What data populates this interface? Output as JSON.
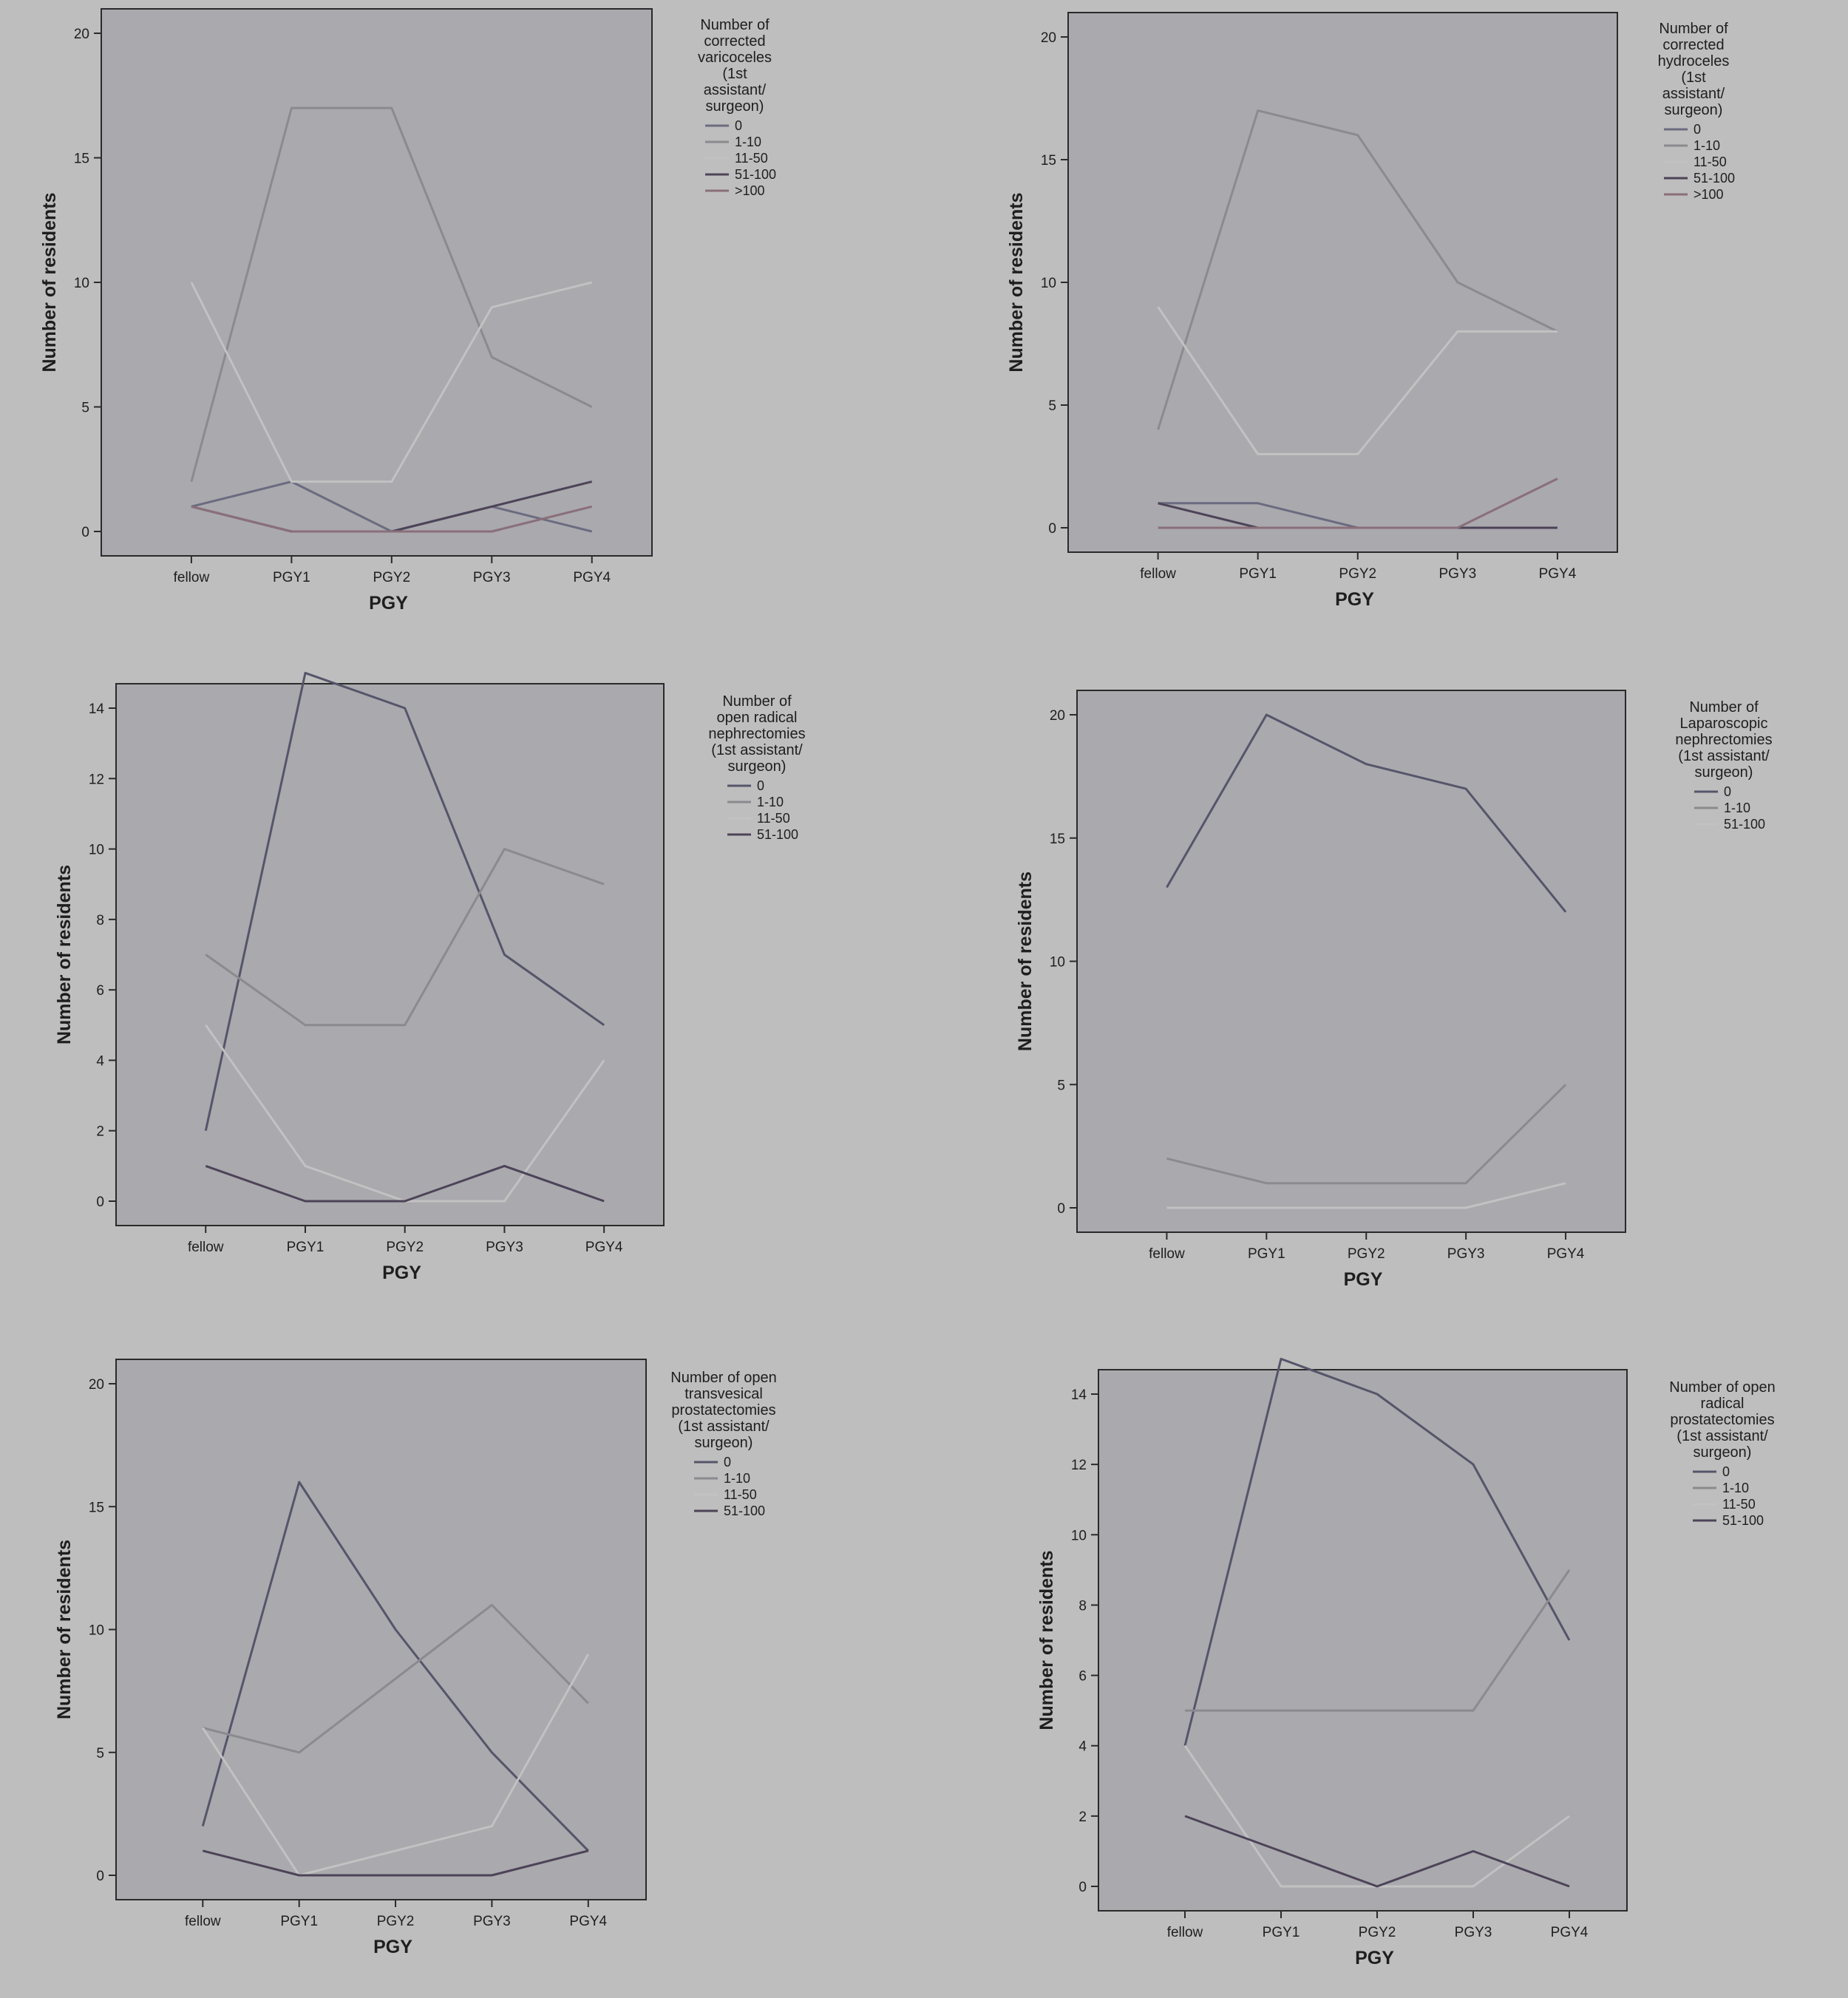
{
  "page": {
    "background": "#bebebe",
    "plot_background": "#a9a9ae"
  },
  "chart_data": [
    {
      "type": "line",
      "xlabel": "PGY",
      "ylabel": "Number of residents",
      "categories": [
        "fellow",
        "PGY1",
        "PGY2",
        "PGY3",
        "PGY4"
      ],
      "ylim": [
        0,
        20
      ],
      "yticks": [
        0,
        5,
        10,
        15,
        20
      ],
      "legend_title": [
        "Number of",
        "corrected",
        "varicoceles",
        "(1st",
        "assistant/",
        "surgeon)"
      ],
      "series": [
        {
          "name": "0",
          "color": "#6b6b80",
          "values": [
            1,
            2,
            0,
            1,
            0
          ]
        },
        {
          "name": "1-10",
          "color": "#8a8a8f",
          "values": [
            2,
            17,
            17,
            7,
            5
          ]
        },
        {
          "name": "11-50",
          "color": "#c2c2c2",
          "values": [
            10,
            2,
            2,
            9,
            10
          ]
        },
        {
          "name": "51-100",
          "color": "#4d4358",
          "values": [
            1,
            0,
            0,
            1,
            2
          ]
        },
        {
          "name": ">100",
          "color": "#8a6f79",
          "values": [
            1,
            0,
            0,
            0,
            1
          ]
        }
      ]
    },
    {
      "type": "line",
      "xlabel": "PGY",
      "ylabel": "Number of residents",
      "categories": [
        "fellow",
        "PGY1",
        "PGY2",
        "PGY3",
        "PGY4"
      ],
      "ylim": [
        0,
        20
      ],
      "yticks": [
        0,
        5,
        10,
        15,
        20
      ],
      "legend_title": [
        "Number of",
        "corrected",
        "hydroceles",
        "(1st",
        "assistant/",
        "surgeon)"
      ],
      "series": [
        {
          "name": "0",
          "color": "#6b6b80",
          "values": [
            1,
            1,
            0,
            0,
            0
          ]
        },
        {
          "name": "1-10",
          "color": "#8a8a8f",
          "values": [
            4,
            17,
            16,
            10,
            8
          ]
        },
        {
          "name": "11-50",
          "color": "#c2c2c2",
          "values": [
            9,
            3,
            3,
            8,
            8
          ]
        },
        {
          "name": "51-100",
          "color": "#4d4358",
          "values": [
            1,
            0,
            0,
            0,
            0
          ]
        },
        {
          "name": ">100",
          "color": "#8a6f79",
          "values": [
            0,
            0,
            0,
            0,
            2
          ]
        }
      ]
    },
    {
      "type": "line",
      "xlabel": "PGY",
      "ylabel": "Number of residents",
      "categories": [
        "fellow",
        "PGY1",
        "PGY2",
        "PGY3",
        "PGY4"
      ],
      "ylim": [
        0,
        14
      ],
      "yticks": [
        0,
        2,
        4,
        6,
        8,
        10,
        12,
        14
      ],
      "legend_title": [
        "Number of",
        "open radical",
        "nephrectomies",
        "(1st assistant/",
        "surgeon)"
      ],
      "series": [
        {
          "name": "0",
          "color": "#55556a",
          "values": [
            2,
            15,
            14,
            7,
            5
          ]
        },
        {
          "name": "1-10",
          "color": "#8a8a8f",
          "values": [
            7,
            5,
            5,
            10,
            9
          ]
        },
        {
          "name": "11-50",
          "color": "#c2c2c2",
          "values": [
            5,
            1,
            0,
            0,
            4
          ]
        },
        {
          "name": "51-100",
          "color": "#4d4358",
          "values": [
            1,
            0,
            0,
            1,
            0
          ]
        }
      ]
    },
    {
      "type": "line",
      "xlabel": "PGY",
      "ylabel": "Number of residents",
      "categories": [
        "fellow",
        "PGY1",
        "PGY2",
        "PGY3",
        "PGY4"
      ],
      "ylim": [
        0,
        20
      ],
      "yticks": [
        0,
        5,
        10,
        15,
        20
      ],
      "legend_title": [
        "Number of",
        "Laparoscopic",
        "nephrectomies",
        "(1st assistant/",
        "surgeon)"
      ],
      "series": [
        {
          "name": "0",
          "color": "#55556a",
          "values": [
            13,
            20,
            18,
            17,
            12
          ]
        },
        {
          "name": "1-10",
          "color": "#8a8a8f",
          "values": [
            2,
            1,
            1,
            1,
            5
          ]
        },
        {
          "name": "51-100",
          "color": "#c2c2c2",
          "values": [
            0,
            0,
            0,
            0,
            1
          ]
        }
      ]
    },
    {
      "type": "line",
      "xlabel": "PGY",
      "ylabel": "Number of residents",
      "categories": [
        "fellow",
        "PGY1",
        "PGY2",
        "PGY3",
        "PGY4"
      ],
      "ylim": [
        0,
        20
      ],
      "yticks": [
        0,
        5,
        10,
        15,
        20
      ],
      "legend_title": [
        "Number of open",
        "transvesical",
        "prostatectomies",
        "(1st assistant/",
        "surgeon)"
      ],
      "series": [
        {
          "name": "0",
          "color": "#55556a",
          "values": [
            2,
            16,
            10,
            5,
            1
          ]
        },
        {
          "name": "1-10",
          "color": "#8a8a8f",
          "values": [
            6,
            5,
            8,
            11,
            7
          ]
        },
        {
          "name": "11-50",
          "color": "#c2c2c2",
          "values": [
            6,
            0,
            1,
            2,
            9
          ]
        },
        {
          "name": "51-100",
          "color": "#4d4358",
          "values": [
            1,
            0,
            0,
            0,
            1
          ]
        }
      ]
    },
    {
      "type": "line",
      "xlabel": "PGY",
      "ylabel": "Number of residents",
      "categories": [
        "fellow",
        "PGY1",
        "PGY2",
        "PGY3",
        "PGY4"
      ],
      "ylim": [
        0,
        14
      ],
      "yticks": [
        0,
        2,
        4,
        6,
        8,
        10,
        12,
        14
      ],
      "legend_title": [
        "Number of open",
        "radical",
        "prostatectomies",
        "(1st assistant/",
        "surgeon)"
      ],
      "series": [
        {
          "name": "0",
          "color": "#55556a",
          "values": [
            4,
            15,
            14,
            12,
            7
          ]
        },
        {
          "name": "1-10",
          "color": "#8a8a8f",
          "values": [
            5,
            5,
            5,
            5,
            9
          ]
        },
        {
          "name": "11-50",
          "color": "#c2c2c2",
          "values": [
            4,
            0,
            0,
            0,
            2
          ]
        },
        {
          "name": "51-100",
          "color": "#4d4358",
          "values": [
            2,
            1,
            0,
            1,
            0
          ]
        }
      ]
    }
  ]
}
